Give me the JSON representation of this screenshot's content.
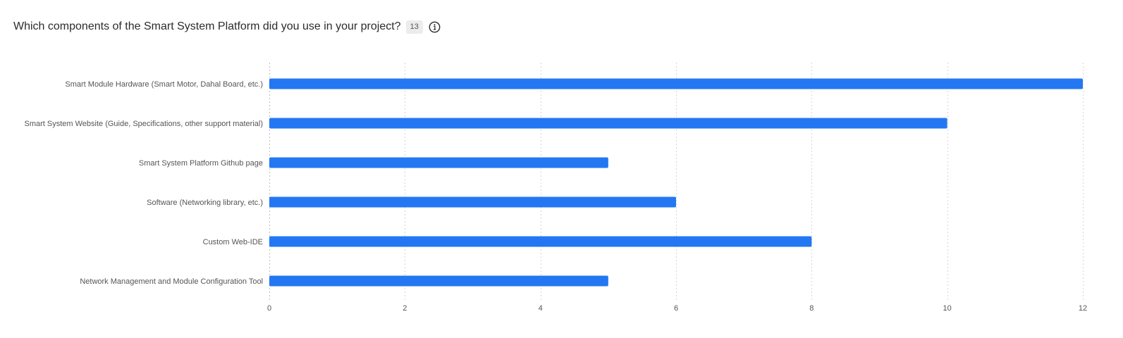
{
  "header": {
    "question": "Which components of the Smart System Platform did you use in your project?",
    "response_count": "13",
    "info_icon": "info-circle-icon"
  },
  "colors": {
    "bar": "#2477f2",
    "grid": "#d6d6d6",
    "axis": "#bdbdbd"
  },
  "chart_data": {
    "type": "bar",
    "orientation": "horizontal",
    "categories": [
      "Smart Module Hardware (Smart Motor, Dahal Board, etc.)",
      "Smart System Website (Guide, Specifications, other support material)",
      "Smart System Platform Github page",
      "Software (Networking library, etc.)",
      "Custom Web-IDE",
      "Network Management and Module Configuration Tool"
    ],
    "values": [
      12,
      10,
      5,
      6,
      8,
      5
    ],
    "xlim": [
      0,
      12
    ],
    "xticks": [
      0,
      2,
      4,
      6,
      8,
      10,
      12
    ],
    "grid": "vertical dotted",
    "legend": "none"
  }
}
